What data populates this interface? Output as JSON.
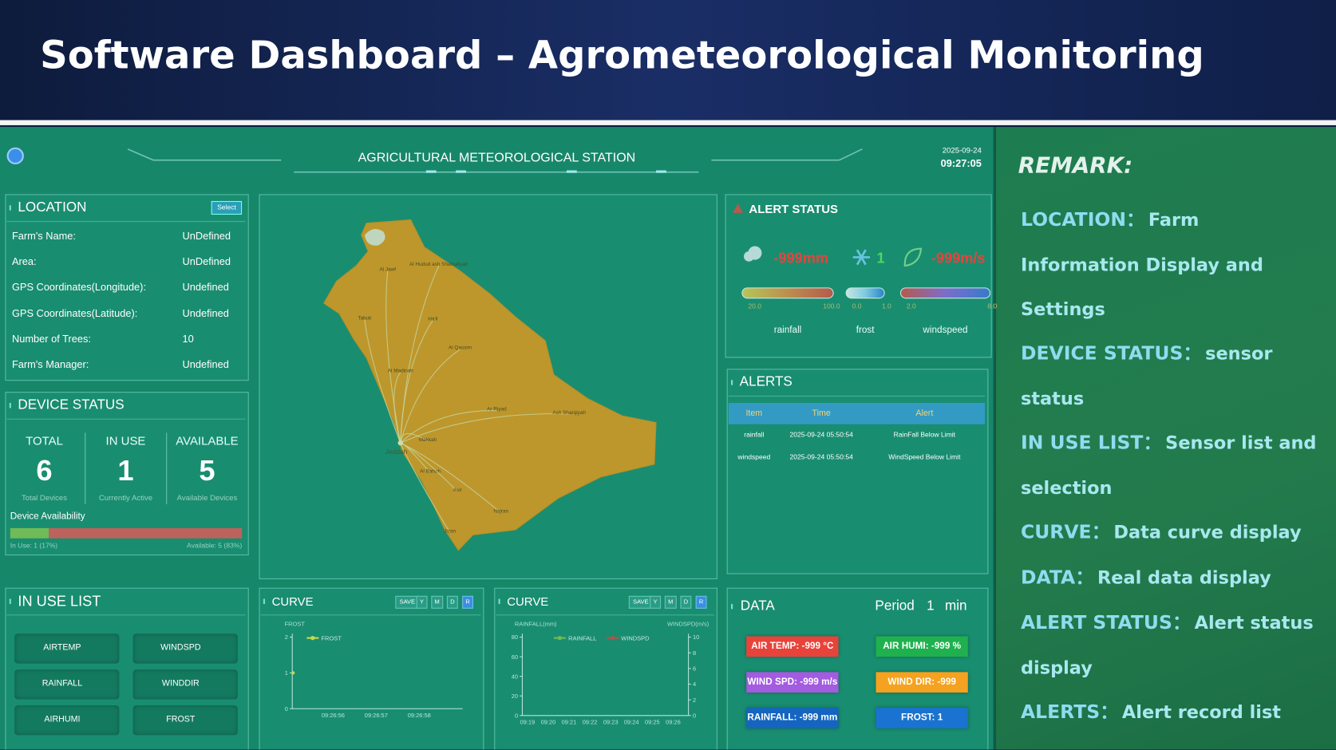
{
  "header": {
    "title": "Software Dashboard – Agrometeorological Monitoring"
  },
  "station": {
    "title": "AGRICULTURAL METEOROLOGICAL STATION",
    "date": "2025-09-24",
    "time": "09:27:05"
  },
  "location": {
    "title": "LOCATION",
    "button": "Select",
    "rows": [
      {
        "label": "Farm's Name:",
        "value": "UnDefined"
      },
      {
        "label": "Area:",
        "value": "UnDefined"
      },
      {
        "label": "GPS Coordinates(Longitude):",
        "value": "Undefined"
      },
      {
        "label": "GPS Coordinates(Latitude):",
        "value": "Undefined"
      },
      {
        "label": "Number of Trees:",
        "value": 10
      },
      {
        "label": "Farm's Manager:",
        "value": "Undefined"
      }
    ]
  },
  "device_status": {
    "title": "DEVICE STATUS",
    "stats": [
      {
        "label": "TOTAL",
        "value": 6,
        "caption": "Total Devices"
      },
      {
        "label": "IN USE",
        "value": 1,
        "caption": "Currently Active"
      },
      {
        "label": "AVAILABLE",
        "value": 5,
        "caption": "Available Devices"
      }
    ],
    "availability": {
      "label": "Device Availability",
      "in_use_note": "In Use: 1 (17%)",
      "available_note": "Available: 5 (83%)",
      "in_use_color": "#8bc34a",
      "available_color": "#ef4f4f"
    }
  },
  "in_use_list": {
    "title": "IN USE LIST",
    "sensors": [
      {
        "name": "AIRTEMP",
        "active": false
      },
      {
        "name": "WINDSPD",
        "active": false
      },
      {
        "name": "RAINFALL",
        "active": false
      },
      {
        "name": "WINDDIR",
        "active": false
      },
      {
        "name": "AIRHUMI",
        "active": false
      },
      {
        "name": "FROST",
        "active": true
      }
    ]
  },
  "map": {
    "color": "#f2940f",
    "hub": "Jeddah",
    "regions": [
      "Al Jawf",
      "Al Hudud ash Shamaliyah",
      "Tabuk",
      "Ha'il",
      "Al Qassim",
      "Al Madinah",
      "Ar Riyad",
      "Ash Sharqiyah",
      "Makkah",
      "Al Bahah",
      "Asir",
      "Najran",
      "Jizan"
    ]
  },
  "curves": [
    {
      "title": "CURVE",
      "buttons": [
        "SAVE",
        "Y",
        "M",
        "D",
        "R"
      ],
      "y_label": "FROST",
      "ylim": [
        0,
        2
      ],
      "yticks": [
        0,
        1,
        2
      ],
      "xticks": [
        "09:26:56",
        "09:26:57",
        "09:26:58"
      ],
      "series": [
        {
          "name": "FROST",
          "color": "#ffeb3b",
          "values": [
            1
          ]
        }
      ]
    },
    {
      "title": "CURVE",
      "buttons": [
        "SAVE",
        "Y",
        "M",
        "D",
        "R"
      ],
      "y_label": "RAINFALL(mm)",
      "y2_label": "WINDSPD(m/s)",
      "ylim": [
        0,
        80
      ],
      "yticks": [
        0,
        20,
        40,
        60,
        80
      ],
      "y2lim": [
        0,
        10
      ],
      "y2ticks": [
        0,
        2,
        4,
        6,
        8,
        10
      ],
      "xticks": [
        "09:19",
        "09:20",
        "09:21",
        "09:22",
        "09:23",
        "09:24",
        "09:25",
        "09:26"
      ],
      "series": [
        {
          "name": "RAINFALL",
          "color": "#8bc34a",
          "values": []
        },
        {
          "name": "WINDSPD",
          "color": "#e53935",
          "axis": "y2",
          "values": []
        }
      ]
    }
  ],
  "alert_status": {
    "title": "ALERT STATUS",
    "gauges": [
      {
        "reading": "-999mm",
        "reading_color": "#e8433a",
        "min": "20.0",
        "max": "100.0",
        "label": "rainfall",
        "gradient": [
          "#e8d34a",
          "#f08a3c",
          "#e8433a"
        ]
      },
      {
        "reading": "1",
        "reading_color": "#4cd964",
        "min": "0.0",
        "max": "1.0",
        "label": "frost",
        "gradient": [
          "#ffffff",
          "#9fd8ff",
          "#2a7de1"
        ]
      },
      {
        "reading": "-999m/s",
        "reading_color": "#e8433a",
        "min": "2.0",
        "max": "8.0",
        "label": "windspeed",
        "gradient": [
          "#e8433a",
          "#9b5de5",
          "#3f6fe0"
        ]
      }
    ]
  },
  "alerts": {
    "title": "ALERTS",
    "columns": [
      "Item",
      "Time",
      "Alert"
    ],
    "rows": [
      [
        "rainfall",
        "2025-09-24 05:50:54",
        "RainFall Below Limit"
      ],
      [
        "windspeed",
        "2025-09-24 05:50:54",
        "WindSpeed Below Limit"
      ]
    ]
  },
  "data": {
    "title": "DATA",
    "period_label": "Period",
    "period": 1,
    "period_unit": "min",
    "readings": [
      {
        "text": "AIR TEMP: -999 °C",
        "color": "#e8433a"
      },
      {
        "text": "AIR HUMI: -999 %",
        "color": "#1fb14e"
      },
      {
        "text": "WIND SPD: -999 m/s",
        "color": "#a35be0"
      },
      {
        "text": "WIND DIR: -999",
        "color": "#f4a21f"
      },
      {
        "text": "RAINFALL: -999 mm",
        "color": "#1565c0"
      },
      {
        "text": "FROST: 1",
        "color": "#1a73d0"
      }
    ]
  },
  "remark": {
    "title": "REMARK:",
    "items": [
      {
        "key": "LOCATION：",
        "text": "Farm Information Display and Settings"
      },
      {
        "key": "DEVICE STATUS：",
        "text": "sensor status"
      },
      {
        "key": "IN USE LIST：",
        "text": "Sensor list and selection"
      },
      {
        "key": "CURVE：",
        "text": "Data curve display"
      },
      {
        "key": "DATA：",
        "text": "Real data display"
      },
      {
        "key": "ALERT STATUS：",
        "text": "Alert status display"
      },
      {
        "key": "ALERTS：",
        "text": "Alert record list"
      }
    ]
  }
}
